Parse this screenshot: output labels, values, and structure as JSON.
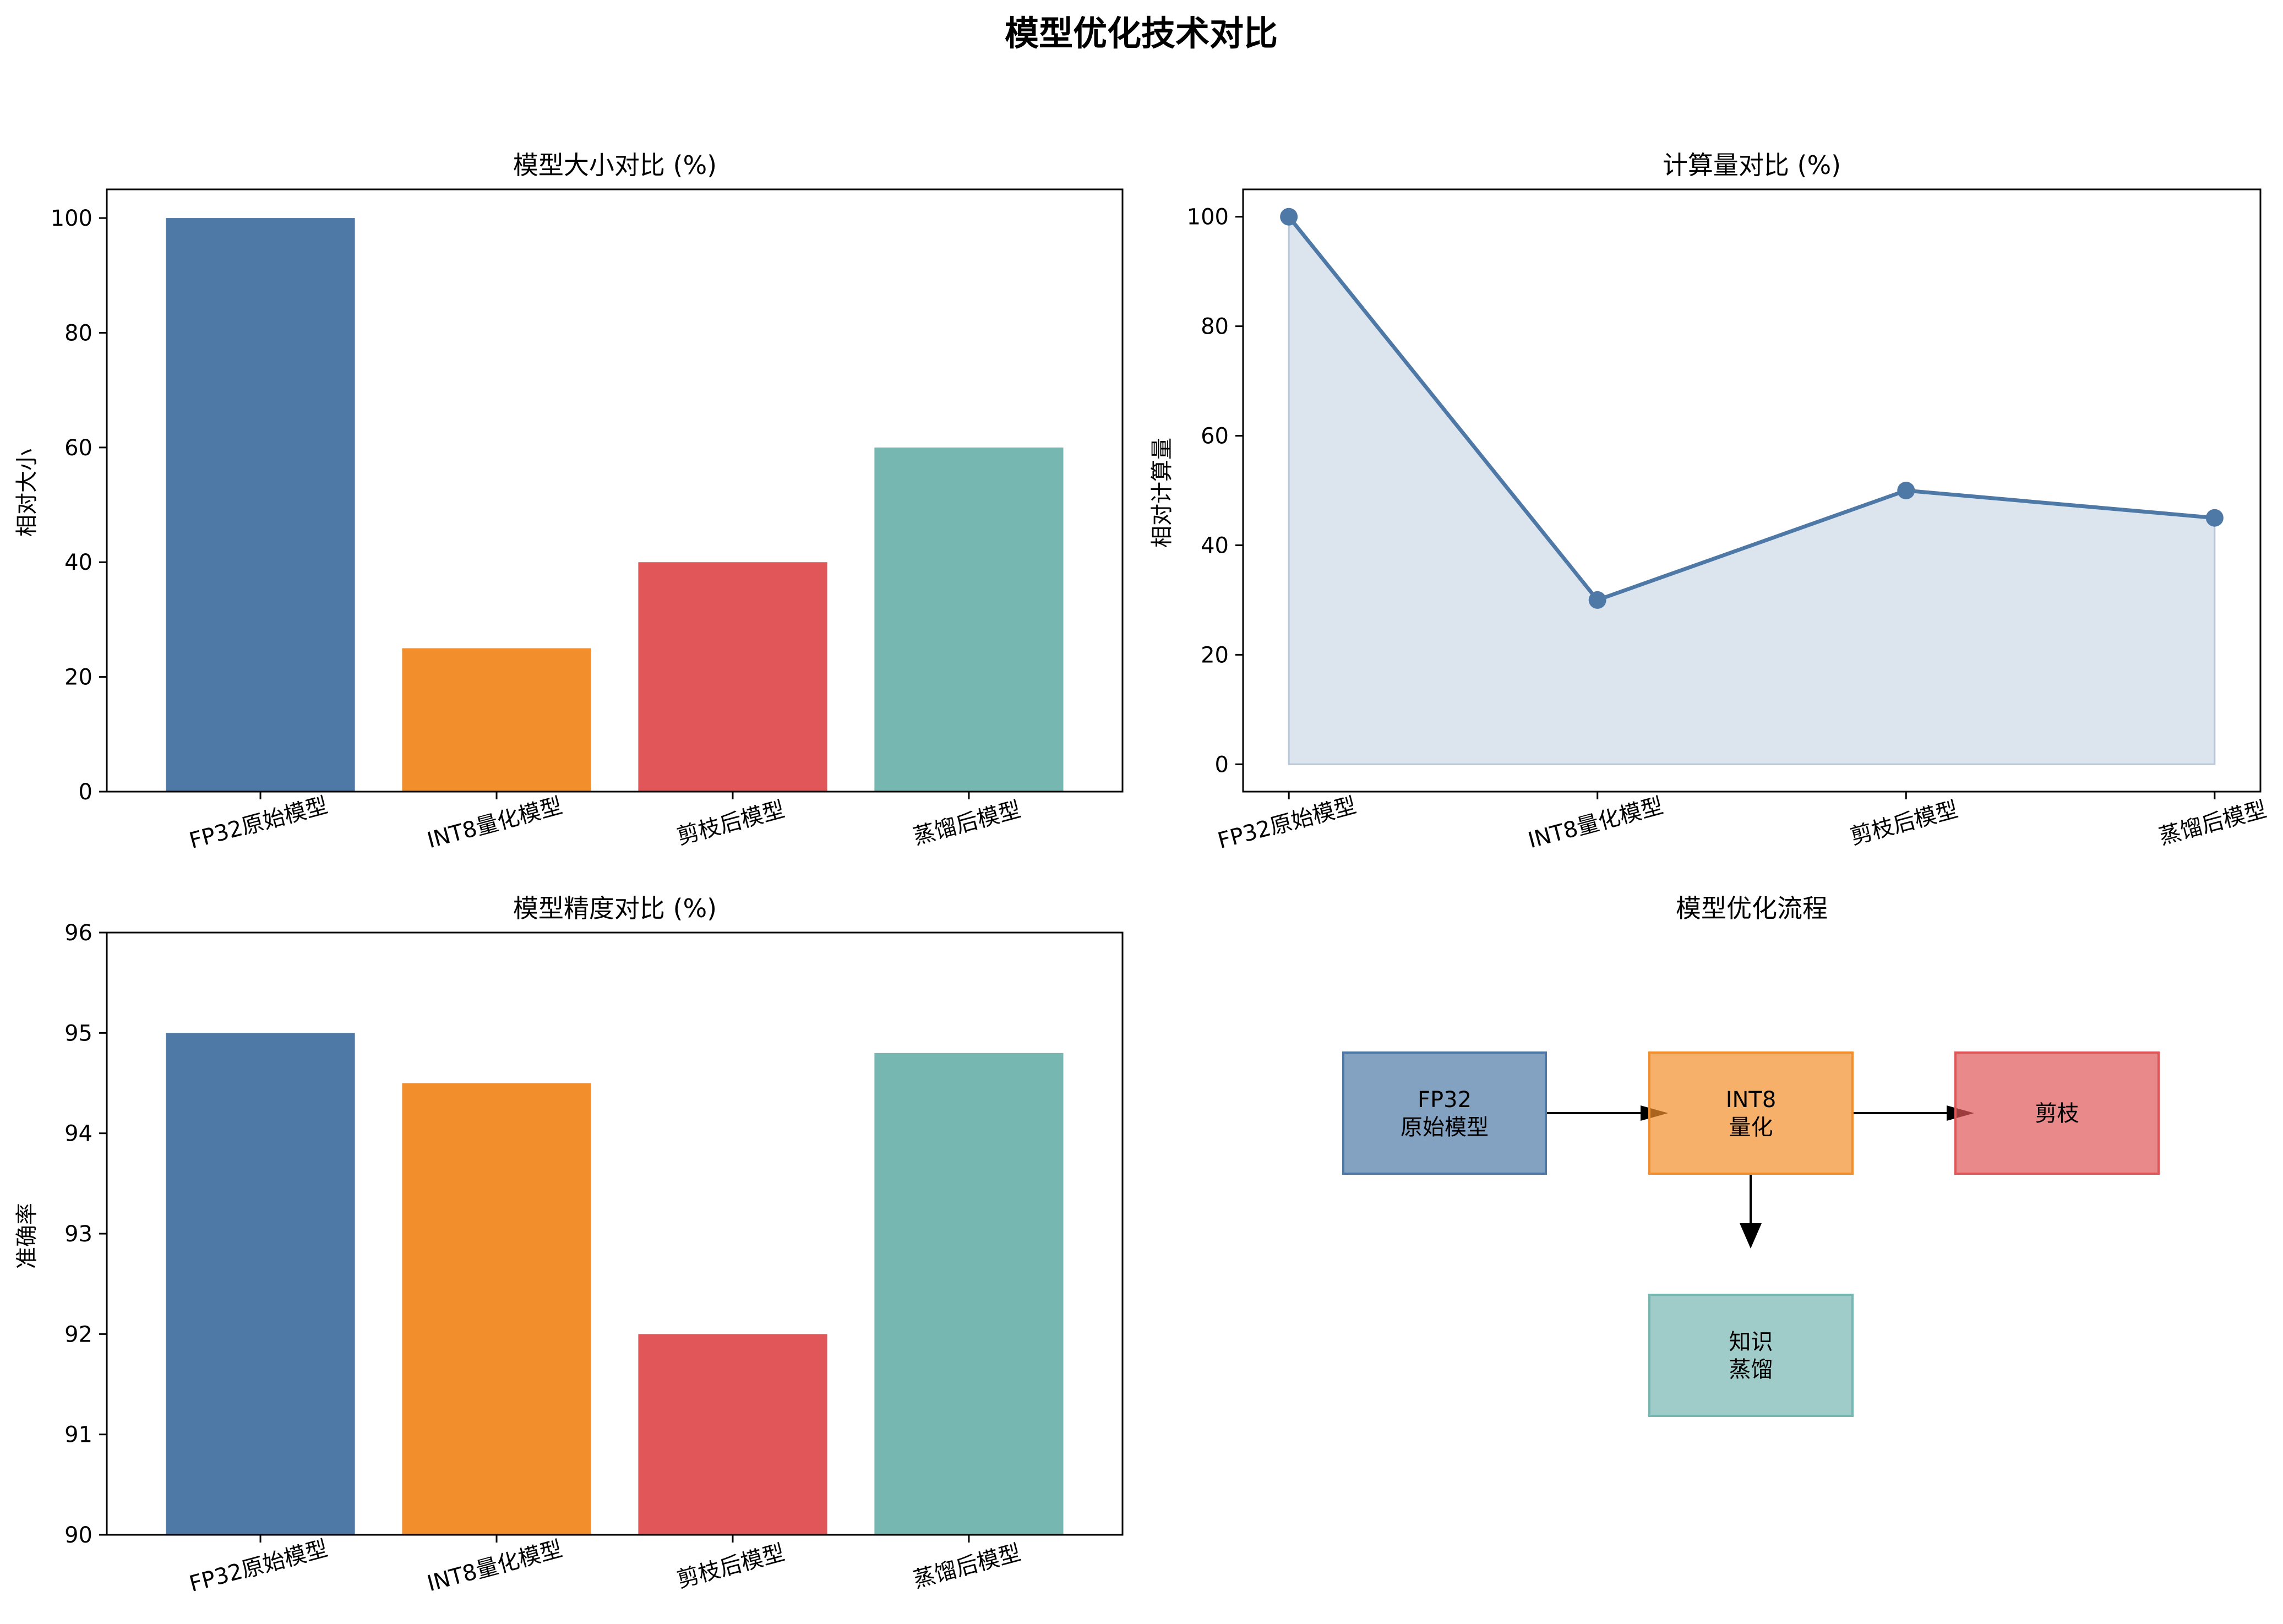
{
  "figure_title": "模型优化技术对比",
  "colors": {
    "blue": "#4e79a7",
    "orange": "#f28e2b",
    "red": "#e15759",
    "teal": "#76b7b2",
    "area_fill": "#dce4ee",
    "area_edge": "#b8c8da"
  },
  "chart_data": [
    {
      "type": "bar",
      "title": "模型大小对比 (%)",
      "ylabel": "相对大小",
      "xlabel": "",
      "categories": [
        "FP32原始模型",
        "INT8量化模型",
        "剪枝后模型",
        "蒸馏后模型"
      ],
      "values": [
        100,
        25,
        40,
        60
      ],
      "ylim": [
        0,
        105
      ],
      "yticks": [
        0,
        20,
        40,
        60,
        80,
        100
      ],
      "grid": false
    },
    {
      "type": "area",
      "title": "计算量对比 (%)",
      "ylabel": "相对计算量",
      "xlabel": "",
      "categories": [
        "FP32原始模型",
        "INT8量化模型",
        "剪枝后模型",
        "蒸馏后模型"
      ],
      "values": [
        100,
        30,
        50,
        45
      ],
      "ylim": [
        -5,
        105
      ],
      "yticks": [
        0,
        20,
        40,
        60,
        80,
        100
      ],
      "grid": false
    },
    {
      "type": "bar",
      "title": "模型精度对比 (%)",
      "ylabel": "准确率",
      "xlabel": "",
      "categories": [
        "FP32原始模型",
        "INT8量化模型",
        "剪枝后模型",
        "蒸馏后模型"
      ],
      "values": [
        95.0,
        94.5,
        92.0,
        94.8
      ],
      "ylim": [
        90,
        96
      ],
      "yticks": [
        90,
        91,
        92,
        93,
        94,
        95,
        96
      ],
      "grid": false
    }
  ],
  "flow": {
    "title": "模型优化流程",
    "boxes": [
      {
        "name": "flow-box-fp32",
        "lines": [
          "FP32",
          "原始模型"
        ],
        "color": "#4e79a7"
      },
      {
        "name": "flow-box-int8",
        "lines": [
          "INT8",
          "量化"
        ],
        "color": "#f28e2b"
      },
      {
        "name": "flow-box-prune",
        "lines": [
          "剪枝"
        ],
        "color": "#e15759"
      },
      {
        "name": "flow-box-distill",
        "lines": [
          "知识",
          "蒸馏"
        ],
        "color": "#76b7b2"
      }
    ]
  }
}
